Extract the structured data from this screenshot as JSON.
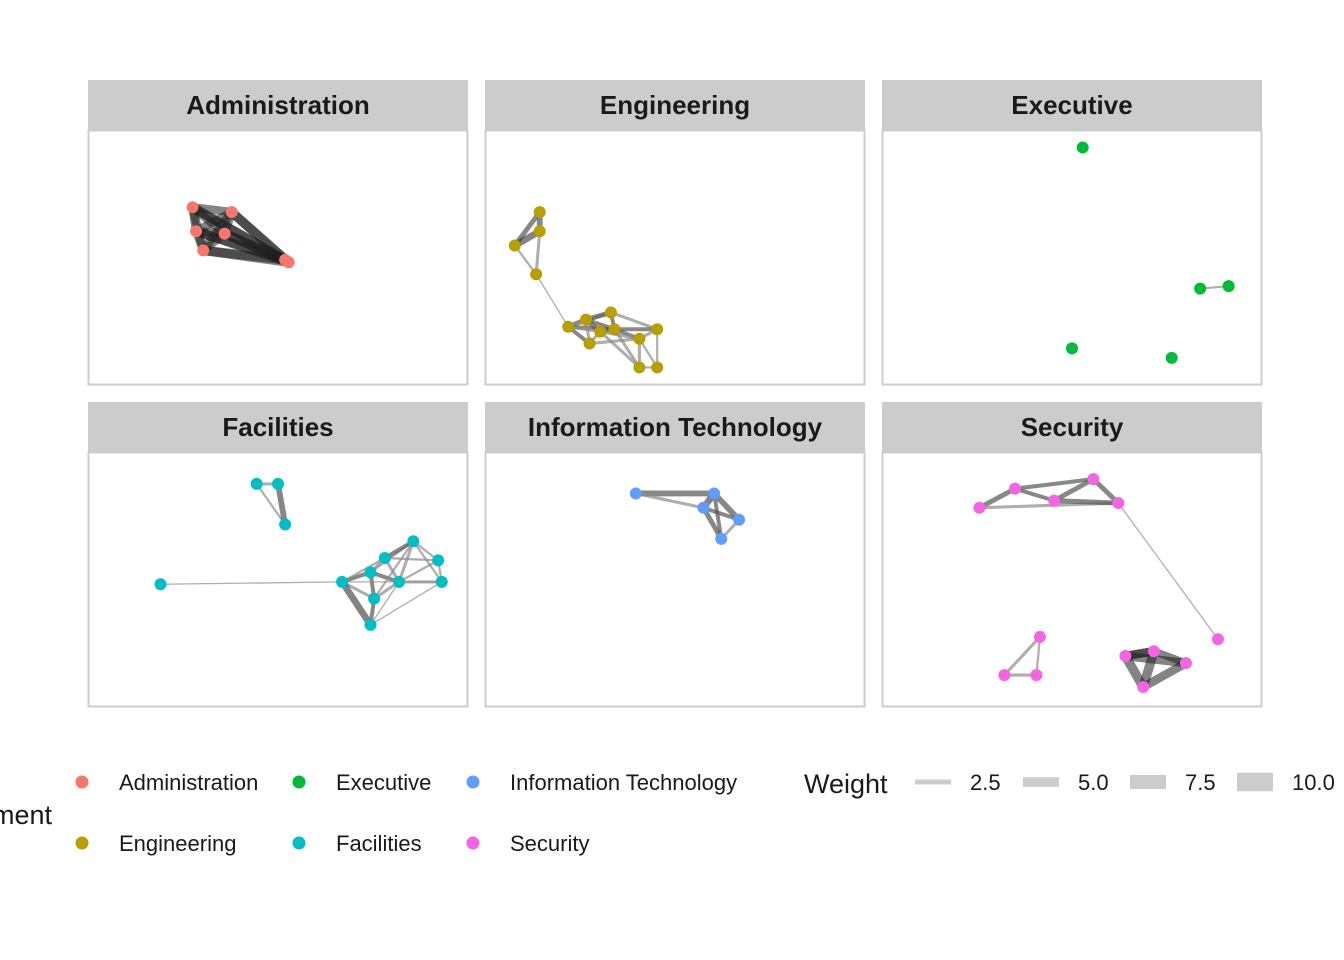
{
  "figure": {
    "type": "faceted-network",
    "color_legend": {
      "title_visible": "ment",
      "entries": [
        {
          "label": "Administration",
          "color": "#F8766D"
        },
        {
          "label": "Engineering",
          "color": "#B79F00"
        },
        {
          "label": "Executive",
          "color": "#00BA38"
        },
        {
          "label": "Facilities",
          "color": "#00BFC4"
        },
        {
          "label": "Information Technology",
          "color": "#619CFF"
        },
        {
          "label": "Security",
          "color": "#F564E3"
        }
      ]
    },
    "weight_legend": {
      "title": "Weight",
      "entries": [
        {
          "label": "2.5",
          "value": 2.5
        },
        {
          "label": "5.0",
          "value": 5.0
        },
        {
          "label": "7.5",
          "value": 7.5
        },
        {
          "label": "10.0",
          "value": 10.0
        }
      ]
    },
    "panels": [
      {
        "title": "Administration",
        "color": "#F8766D",
        "nodes": [
          [
            0.26,
            0.29
          ],
          [
            0.37,
            0.31
          ],
          [
            0.27,
            0.39
          ],
          [
            0.35,
            0.4
          ],
          [
            0.29,
            0.47
          ],
          [
            0.52,
            0.51
          ],
          [
            0.53,
            0.52
          ]
        ],
        "edges": [
          [
            0,
            1,
            9
          ],
          [
            0,
            2,
            9
          ],
          [
            0,
            3,
            9
          ],
          [
            0,
            4,
            9
          ],
          [
            0,
            5,
            10
          ],
          [
            0,
            6,
            10
          ],
          [
            1,
            2,
            9
          ],
          [
            1,
            3,
            9
          ],
          [
            1,
            4,
            9
          ],
          [
            1,
            5,
            10
          ],
          [
            1,
            6,
            10
          ],
          [
            2,
            3,
            9
          ],
          [
            2,
            4,
            9
          ],
          [
            2,
            5,
            10
          ],
          [
            2,
            6,
            10
          ],
          [
            3,
            4,
            9
          ],
          [
            3,
            5,
            10
          ],
          [
            3,
            6,
            10
          ],
          [
            4,
            5,
            10
          ],
          [
            4,
            6,
            10
          ],
          [
            5,
            6,
            10
          ]
        ]
      },
      {
        "title": "Engineering",
        "color": "#B79F00",
        "nodes": [
          [
            0.12,
            0.31
          ],
          [
            0.12,
            0.39
          ],
          [
            0.05,
            0.45
          ],
          [
            0.11,
            0.57
          ],
          [
            0.2,
            0.79
          ],
          [
            0.25,
            0.76
          ],
          [
            0.26,
            0.86
          ],
          [
            0.32,
            0.73
          ],
          [
            0.33,
            0.8
          ],
          [
            0.29,
            0.81
          ],
          [
            0.4,
            0.84
          ],
          [
            0.45,
            0.8
          ],
          [
            0.4,
            0.96
          ],
          [
            0.45,
            0.96
          ]
        ],
        "edges": [
          [
            0,
            1,
            6
          ],
          [
            0,
            2,
            5
          ],
          [
            1,
            2,
            7
          ],
          [
            1,
            3,
            3
          ],
          [
            2,
            3,
            2
          ],
          [
            3,
            4,
            1
          ],
          [
            4,
            5,
            5
          ],
          [
            4,
            6,
            4
          ],
          [
            4,
            7,
            3
          ],
          [
            4,
            8,
            4
          ],
          [
            4,
            9,
            3
          ],
          [
            5,
            7,
            5
          ],
          [
            5,
            8,
            4
          ],
          [
            5,
            9,
            5
          ],
          [
            5,
            6,
            3
          ],
          [
            6,
            9,
            3
          ],
          [
            6,
            10,
            3
          ],
          [
            7,
            8,
            4
          ],
          [
            7,
            11,
            3
          ],
          [
            8,
            9,
            5
          ],
          [
            8,
            10,
            4
          ],
          [
            8,
            11,
            4
          ],
          [
            8,
            12,
            3
          ],
          [
            9,
            10,
            3
          ],
          [
            9,
            12,
            3
          ],
          [
            10,
            11,
            3
          ],
          [
            10,
            12,
            3
          ],
          [
            10,
            13,
            2
          ],
          [
            11,
            13,
            2
          ],
          [
            12,
            13,
            2
          ]
        ]
      },
      {
        "title": "Executive",
        "color": "#00BA38",
        "nodes": [
          [
            0.53,
            0.04
          ],
          [
            0.86,
            0.63
          ],
          [
            0.94,
            0.62
          ],
          [
            0.5,
            0.88
          ],
          [
            0.78,
            0.92
          ]
        ],
        "edges": [
          [
            1,
            2,
            2
          ]
        ]
      },
      {
        "title": "Facilities",
        "color": "#00BFC4",
        "nodes": [
          [
            0.44,
            0.1
          ],
          [
            0.5,
            0.1
          ],
          [
            0.52,
            0.27
          ],
          [
            0.17,
            0.52
          ],
          [
            0.68,
            0.51
          ],
          [
            0.76,
            0.47
          ],
          [
            0.77,
            0.58
          ],
          [
            0.8,
            0.41
          ],
          [
            0.84,
            0.51
          ],
          [
            0.88,
            0.34
          ],
          [
            0.95,
            0.42
          ],
          [
            0.96,
            0.51
          ],
          [
            0.76,
            0.69
          ]
        ],
        "edges": [
          [
            0,
            1,
            3
          ],
          [
            0,
            2,
            2
          ],
          [
            1,
            2,
            6
          ],
          [
            3,
            4,
            1
          ],
          [
            4,
            5,
            4
          ],
          [
            4,
            6,
            3
          ],
          [
            4,
            12,
            7
          ],
          [
            4,
            7,
            2
          ],
          [
            5,
            6,
            4
          ],
          [
            5,
            7,
            3
          ],
          [
            5,
            8,
            4
          ],
          [
            5,
            9,
            2
          ],
          [
            6,
            8,
            3
          ],
          [
            6,
            12,
            4
          ],
          [
            6,
            9,
            2
          ],
          [
            7,
            8,
            3
          ],
          [
            7,
            9,
            4
          ],
          [
            7,
            10,
            2
          ],
          [
            8,
            9,
            3
          ],
          [
            8,
            10,
            2
          ],
          [
            8,
            11,
            3
          ],
          [
            9,
            10,
            2
          ],
          [
            9,
            11,
            2
          ],
          [
            10,
            11,
            2
          ],
          [
            12,
            8,
            1
          ],
          [
            12,
            11,
            1
          ],
          [
            4,
            11,
            1
          ]
        ]
      },
      {
        "title": "Information Technology",
        "color": "#619CFF",
        "nodes": [
          [
            0.39,
            0.14
          ],
          [
            0.61,
            0.14
          ],
          [
            0.58,
            0.2
          ],
          [
            0.68,
            0.25
          ],
          [
            0.63,
            0.33
          ]
        ],
        "edges": [
          [
            0,
            1,
            6
          ],
          [
            0,
            2,
            3
          ],
          [
            1,
            2,
            7
          ],
          [
            1,
            3,
            6
          ],
          [
            1,
            4,
            4
          ],
          [
            2,
            3,
            4
          ],
          [
            2,
            4,
            5
          ],
          [
            3,
            4,
            3
          ]
        ]
      },
      {
        "title": "Security",
        "color": "#F564E3",
        "nodes": [
          [
            0.56,
            0.08
          ],
          [
            0.34,
            0.12
          ],
          [
            0.24,
            0.2
          ],
          [
            0.45,
            0.17
          ],
          [
            0.63,
            0.18
          ],
          [
            0.91,
            0.75
          ],
          [
            0.41,
            0.74
          ],
          [
            0.31,
            0.9
          ],
          [
            0.4,
            0.9
          ],
          [
            0.73,
            0.8
          ],
          [
            0.65,
            0.82
          ],
          [
            0.82,
            0.85
          ],
          [
            0.7,
            0.95
          ]
        ],
        "edges": [
          [
            0,
            1,
            4
          ],
          [
            0,
            3,
            5
          ],
          [
            0,
            4,
            5
          ],
          [
            1,
            2,
            5
          ],
          [
            1,
            3,
            4
          ],
          [
            2,
            4,
            3
          ],
          [
            3,
            4,
            5
          ],
          [
            4,
            5,
            1
          ],
          [
            6,
            7,
            3
          ],
          [
            6,
            8,
            2
          ],
          [
            7,
            8,
            3
          ],
          [
            9,
            10,
            9
          ],
          [
            9,
            11,
            8
          ],
          [
            9,
            12,
            10
          ],
          [
            10,
            11,
            9
          ],
          [
            10,
            12,
            10
          ],
          [
            11,
            12,
            9
          ],
          [
            10,
            9,
            9
          ]
        ]
      }
    ]
  }
}
